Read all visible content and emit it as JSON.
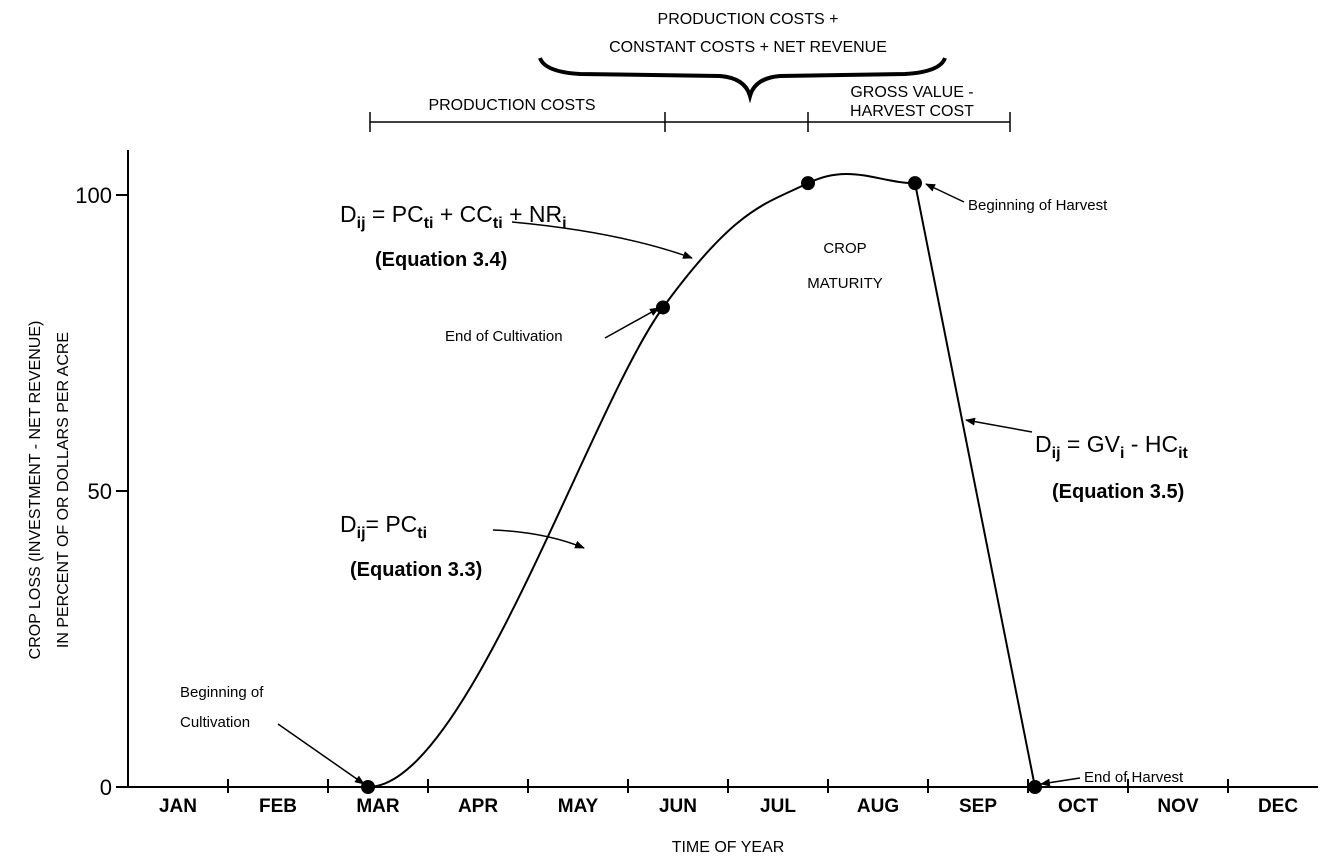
{
  "chart_data": {
    "type": "line",
    "xlabel": "TIME OF YEAR",
    "ylabel": [
      "CROP LOSS (INVESTMENT - NET REVENUE)",
      "IN PERCENT OF OR DOLLARS PER ACRE"
    ],
    "categories": [
      "JAN",
      "FEB",
      "MAR",
      "APR",
      "MAY",
      "JUN",
      "JUL",
      "AUG",
      "SEP",
      "OCT",
      "NOV",
      "DEC"
    ],
    "xlim": [
      0,
      12
    ],
    "ylim": [
      0,
      100
    ],
    "yticks": [
      0,
      50,
      100
    ],
    "series": [
      {
        "color": "#000000",
        "x": [
          2.4,
          5.35,
          6.8,
          7.87,
          9.07
        ],
        "values": [
          0,
          81,
          102,
          102,
          0
        ]
      }
    ],
    "top_labels": {
      "brace": [
        "PRODUCTION COSTS +",
        "CONSTANT COSTS + NET REVENUE"
      ],
      "left_span": "PRODUCTION COSTS",
      "right_span": [
        "GROSS VALUE -",
        "HARVEST COST"
      ]
    },
    "annotations": {
      "beginning_cultivation": [
        "Beginning of",
        "Cultivation"
      ],
      "end_cultivation": "End of Cultivation",
      "beginning_harvest": "Beginning of Harvest",
      "end_harvest": "End of Harvest",
      "crop_maturity": [
        "CROP",
        "MATURITY"
      ]
    },
    "equations": [
      {
        "name": "(Equation 3.4)",
        "parts": [
          {
            "text": "D"
          },
          {
            "sub": "ij"
          },
          {
            "text": " = PC"
          },
          {
            "sub": "ti"
          },
          {
            "text": " + CC"
          },
          {
            "sub": "ti"
          },
          {
            "text": " + NR"
          },
          {
            "sub": "i"
          }
        ]
      },
      {
        "name": "(Equation 3.3)",
        "parts": [
          {
            "text": "D"
          },
          {
            "sub": "ij"
          },
          {
            "text": "= PC"
          },
          {
            "sub": "ti"
          }
        ]
      },
      {
        "name": "(Equation 3.5)",
        "parts": [
          {
            "text": "D"
          },
          {
            "sub": "ij"
          },
          {
            "text": " = GV"
          },
          {
            "sub": "i"
          },
          {
            "text": " - HC"
          },
          {
            "sub": "it"
          }
        ]
      }
    ]
  }
}
